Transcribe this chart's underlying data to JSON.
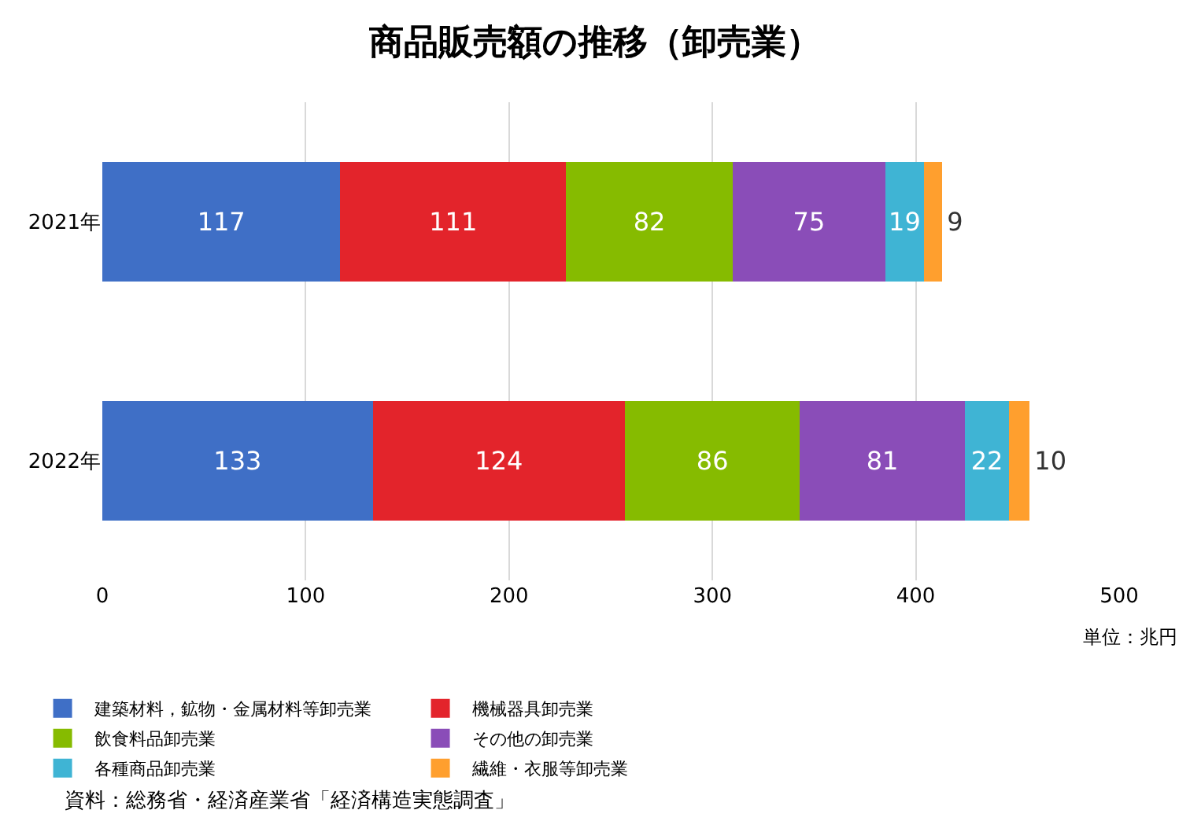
{
  "chart_data": {
    "type": "bar",
    "orientation": "horizontal",
    "stacked": true,
    "title": "商品販売額の推移（卸売業）",
    "categories": [
      "2021年",
      "2022年"
    ],
    "series": [
      {
        "name": "建築材料，鉱物・金属材料等卸売業",
        "color": "#3f6fc6",
        "values": [
          117,
          133
        ]
      },
      {
        "name": "機械器具卸売業",
        "color": "#e3242b",
        "values": [
          111,
          124
        ]
      },
      {
        "name": "飲食料品卸売業",
        "color": "#86bb00",
        "values": [
          82,
          86
        ]
      },
      {
        "name": "その他の卸売業",
        "color": "#8a4db8",
        "values": [
          75,
          81
        ]
      },
      {
        "name": "各種商品卸売業",
        "color": "#3fb4d4",
        "values": [
          19,
          22
        ]
      },
      {
        "name": "繊維・衣服等卸売業",
        "color": "#ff9f2e",
        "values": [
          9,
          10
        ]
      }
    ],
    "xlim": [
      0,
      500
    ],
    "xticks": [
      0,
      100,
      200,
      300,
      400,
      500
    ],
    "grid": "x",
    "legend": "bottom",
    "data_labels": true,
    "annotations": [
      "単位：兆円",
      "資料：総務省・経済産業省「経済構造実態調査」"
    ]
  }
}
